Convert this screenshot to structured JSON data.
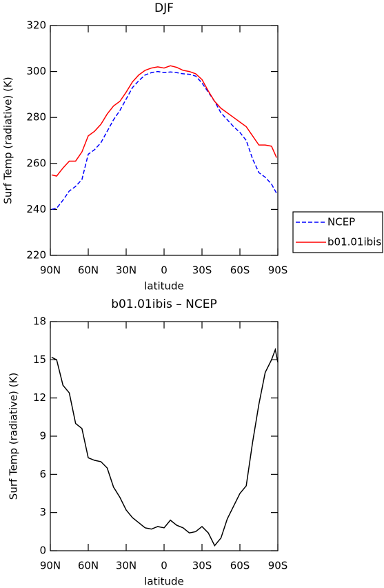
{
  "chart_data": [
    {
      "type": "line",
      "title": "DJF",
      "ylabel": "Surf Temp (radiative) (K)",
      "xlabel": "latitude",
      "x": [
        89,
        85,
        80,
        75,
        70,
        65,
        60,
        55,
        50,
        45,
        40,
        35,
        30,
        25,
        20,
        15,
        10,
        5,
        0,
        -5,
        -10,
        -15,
        -20,
        -25,
        -30,
        -35,
        -40,
        -45,
        -50,
        -55,
        -60,
        -65,
        -70,
        -75,
        -80,
        -85,
        -89
      ],
      "series": [
        {
          "name": "NCEP",
          "color": "#0000ff",
          "style": "dashed",
          "values": [
            240,
            240.5,
            244,
            248,
            250,
            253,
            264,
            266,
            269,
            274,
            279,
            283,
            288,
            293,
            296,
            298.5,
            299.5,
            300,
            299.5,
            299.8,
            299.5,
            299,
            298.8,
            298,
            295,
            291,
            287,
            282,
            279,
            276,
            273.5,
            270,
            262,
            256,
            254,
            251,
            247
          ]
        },
        {
          "name": "b01.01ibis",
          "color": "#ff0000",
          "style": "solid",
          "values": [
            255,
            254.5,
            258,
            261,
            261,
            265,
            272,
            274,
            277,
            281.5,
            285,
            287,
            291,
            295.5,
            298.5,
            300.5,
            301.5,
            302,
            301.5,
            302.5,
            301.8,
            300.5,
            300,
            299,
            296.5,
            291.5,
            287,
            284,
            282,
            280,
            278,
            276,
            272,
            268,
            268,
            267.5,
            262.5
          ]
        }
      ],
      "xlim": [
        90,
        -90
      ],
      "xticks": [
        {
          "value": 90,
          "label": "90N"
        },
        {
          "value": 60,
          "label": "60N"
        },
        {
          "value": 30,
          "label": "30N"
        },
        0,
        {
          "value": -30,
          "label": "30S"
        },
        {
          "value": -60,
          "label": "60S"
        },
        {
          "value": -90,
          "label": "90S"
        }
      ],
      "ylim": [
        220,
        320
      ],
      "yticks": [
        220,
        240,
        260,
        280,
        300,
        320
      ],
      "legend": "right"
    },
    {
      "type": "line",
      "title": "b01.01ibis – NCEP",
      "ylabel": "Surf Temp (radiative) (K)",
      "xlabel": "latitude",
      "x": [
        89,
        85,
        80,
        75,
        70,
        65,
        60,
        55,
        50,
        45,
        40,
        35,
        30,
        25,
        20,
        15,
        10,
        5,
        0,
        -5,
        -10,
        -15,
        -20,
        -25,
        -30,
        -35,
        -40,
        -45,
        -50,
        -55,
        -60,
        -65,
        -70,
        -75,
        -80,
        -85,
        -88,
        -90
      ],
      "series": [
        {
          "color": "#000000",
          "style": "solid",
          "values": [
            15.2,
            15,
            13,
            12.4,
            10,
            9.6,
            7.3,
            7.1,
            7,
            6.5,
            5,
            4.2,
            3.2,
            2.6,
            2.2,
            1.8,
            1.7,
            1.9,
            1.8,
            2.4,
            2,
            1.8,
            1.4,
            1.5,
            1.9,
            1.4,
            0.4,
            1.0,
            2.5,
            3.5,
            4.5,
            5.1,
            8.5,
            11.5,
            14,
            15,
            15.8,
            14.8
          ]
        }
      ],
      "xlim": [
        90,
        -90
      ],
      "xticks": [
        {
          "value": 90,
          "label": "90N"
        },
        {
          "value": 60,
          "label": "60N"
        },
        {
          "value": 30,
          "label": "30N"
        },
        0,
        {
          "value": -30,
          "label": "30S"
        },
        {
          "value": -60,
          "label": "60S"
        },
        {
          "value": -90,
          "label": "90S"
        }
      ],
      "ylim": [
        0,
        18
      ],
      "yticks": [
        0,
        3,
        6,
        9,
        12,
        15,
        18
      ]
    }
  ]
}
